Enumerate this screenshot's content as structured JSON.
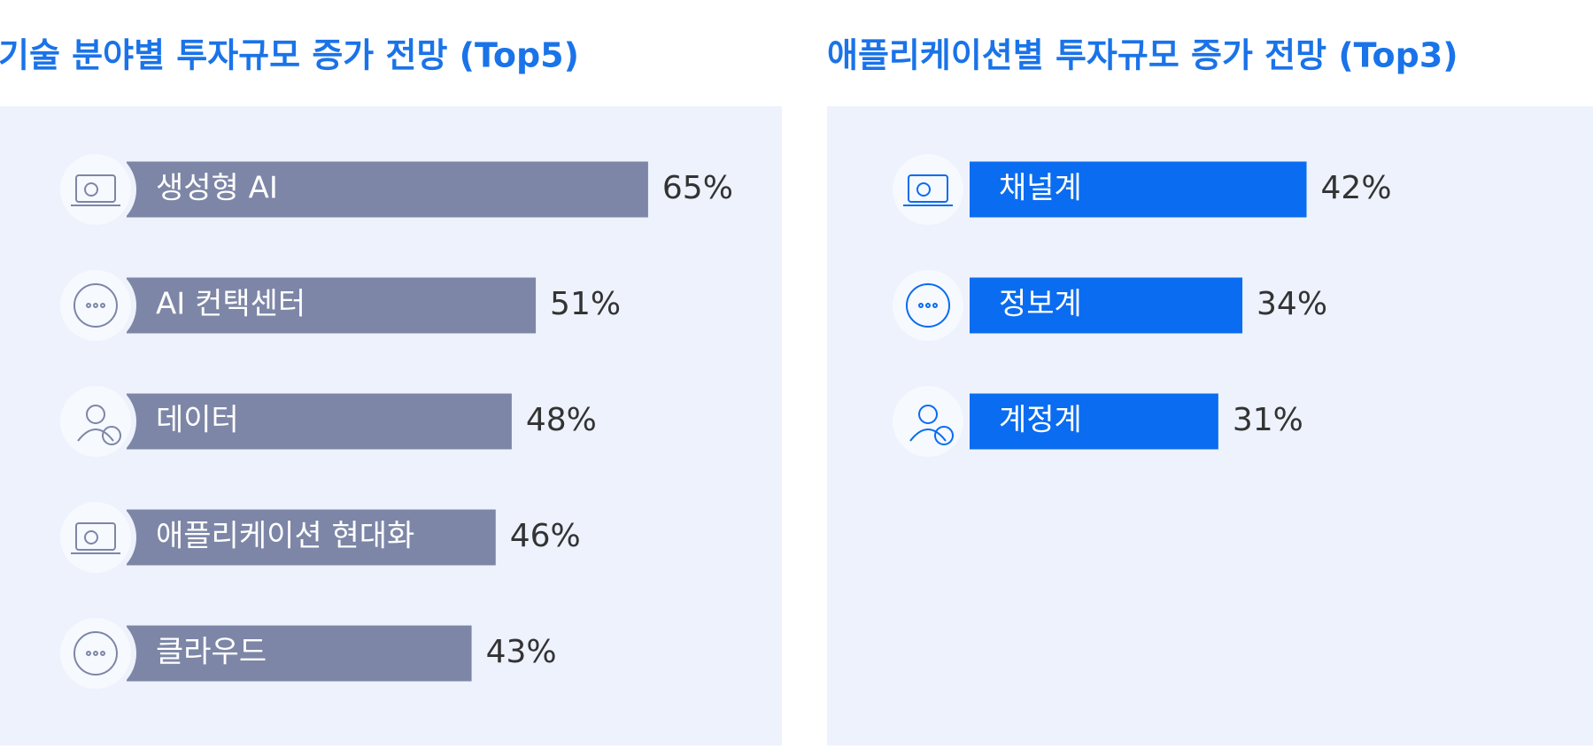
{
  "chart_data": [
    {
      "type": "bar",
      "title": "기술 분야별 투자규모 증가 전망 (Top5)",
      "categories": [
        "생성형 AI",
        "AI 컨택센터",
        "데이터",
        "애플리케이션 현대화",
        "클라우드"
      ],
      "values": [
        65,
        51,
        48,
        46,
        43
      ],
      "value_labels": [
        "65%",
        "51%",
        "48%",
        "46%",
        "43%"
      ],
      "color": "#7d86a6"
    },
    {
      "type": "bar",
      "title": "애플리케이션별 투자규모 증가 전망 (Top3)",
      "categories": [
        "채널계",
        "정보계",
        "계정계"
      ],
      "values": [
        42,
        34,
        31
      ],
      "value_labels": [
        "42%",
        "34%",
        "31%"
      ],
      "color": "#0a6cf0"
    }
  ]
}
